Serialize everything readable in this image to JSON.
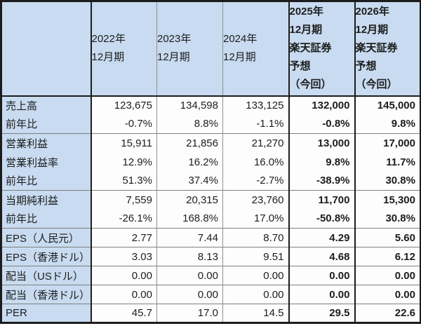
{
  "colors": {
    "header_bg": "#c8dbf0",
    "cell_bg": "#fdfdfd",
    "text": "#1d1d1d",
    "thick_border": "#1c1c1c",
    "thin_border": "#909090",
    "group_line": "#7f7f7f"
  },
  "chart_data": {
    "type": "table",
    "corner_label": "",
    "col_headers": [
      {
        "full_label": "2022年12月期",
        "lines": [
          "2022年",
          "12月期"
        ],
        "bold": false
      },
      {
        "full_label": "2023年12月期",
        "lines": [
          "2023年",
          "12月期"
        ],
        "bold": false
      },
      {
        "full_label": "2024年12月期",
        "lines": [
          "2024年",
          "12月期"
        ],
        "bold": false
      },
      {
        "full_label": "2025年12月期 楽天証券予想（今回）",
        "lines": [
          "2025年",
          "12月期",
          "楽天証券",
          "予想",
          "（今回）"
        ],
        "bold": true
      },
      {
        "full_label": "2026年12月期 楽天証券予想（今回）",
        "lines": [
          "2026年",
          "12月期",
          "楽天証券",
          "予想",
          "（今回）"
        ],
        "bold": true
      }
    ],
    "bold_value_columns": [
      3,
      4
    ],
    "rows": [
      {
        "label": "売上高",
        "values": [
          "123,675",
          "134,598",
          "133,125",
          "132,000",
          "145,000"
        ],
        "group_start": false
      },
      {
        "label": "前年比",
        "values": [
          "-0.7%",
          "8.8%",
          "-1.1%",
          "-0.8%",
          "9.8%"
        ],
        "group_start": false
      },
      {
        "label": "営業利益",
        "values": [
          "15,911",
          "21,856",
          "21,270",
          "13,000",
          "17,000"
        ],
        "group_start": true
      },
      {
        "label": "営業利益率",
        "values": [
          "12.9%",
          "16.2%",
          "16.0%",
          "9.8%",
          "11.7%"
        ],
        "group_start": false
      },
      {
        "label": "前年比",
        "values": [
          "51.3%",
          "37.4%",
          "-2.7%",
          "-38.9%",
          "30.8%"
        ],
        "group_start": false
      },
      {
        "label": "当期純利益",
        "values": [
          "7,559",
          "20,315",
          "23,760",
          "11,700",
          "15,300"
        ],
        "group_start": true
      },
      {
        "label": "前年比",
        "values": [
          "-26.1%",
          "168.8%",
          "17.0%",
          "-50.8%",
          "30.8%"
        ],
        "group_start": false
      },
      {
        "label": "EPS（人民元）",
        "values": [
          "2.77",
          "7.44",
          "8.70",
          "4.29",
          "5.60"
        ],
        "group_start": true
      },
      {
        "label": "EPS（香港ドル）",
        "values": [
          "3.03",
          "8.13",
          "9.51",
          "4.68",
          "6.12"
        ],
        "group_start": true
      },
      {
        "label": "配当（USドル）",
        "values": [
          "0.00",
          "0.00",
          "0.00",
          "0.00",
          "0.00"
        ],
        "group_start": true
      },
      {
        "label": "配当（香港ドル）",
        "values": [
          "0.00",
          "0.00",
          "0.00",
          "0.00",
          "0.00"
        ],
        "group_start": true
      },
      {
        "label": "PER",
        "values": [
          "45.7",
          "17.0",
          "14.5",
          "29.5",
          "22.6"
        ],
        "group_start": true
      }
    ]
  }
}
